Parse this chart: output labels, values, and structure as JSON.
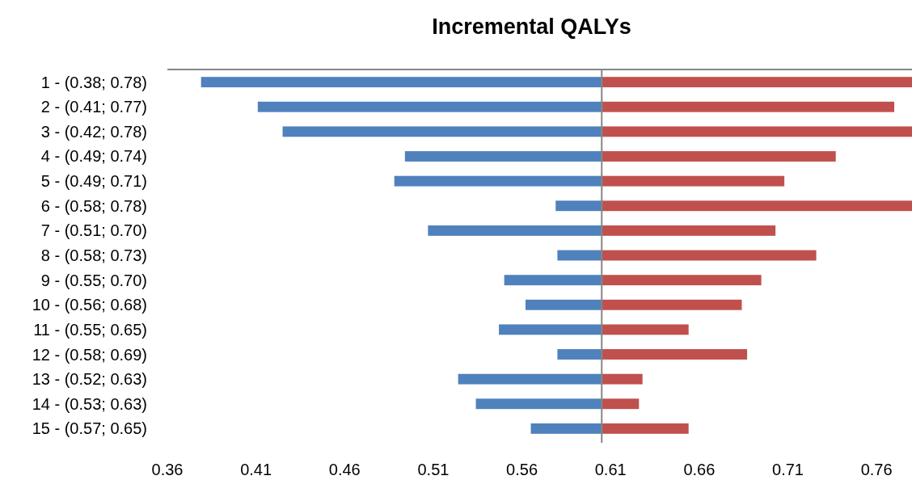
{
  "chart_data": {
    "type": "bar",
    "orientation": "horizontal",
    "title": "Incremental QALYs",
    "categories": [
      "1 - (0.38; 0.78)",
      "2 - (0.41; 0.77)",
      "3 - (0.42; 0.78)",
      "4 - (0.49; 0.74)",
      "5 - (0.49; 0.71)",
      "6 - (0.58; 0.78)",
      "7 - (0.51; 0.70)",
      "8 - (0.58; 0.73)",
      "9 - (0.55; 0.70)",
      "10 - (0.56; 0.68)",
      "11 - (0.55; 0.65)",
      "12 - (0.58; 0.69)",
      "13 - (0.52; 0.63)",
      "14 - (0.53; 0.63)",
      "15 - (0.57; 0.65)"
    ],
    "series": [
      {
        "color": "#4f81bd",
        "base": [
          0.379,
          0.411,
          0.425,
          0.494,
          0.488,
          0.579,
          0.507,
          0.58,
          0.55,
          0.562,
          0.547,
          0.58,
          0.524,
          0.534,
          0.565
        ],
        "values": [
          0.226,
          0.194,
          0.18,
          0.111,
          0.117,
          0.026,
          0.098,
          0.025,
          0.055,
          0.043,
          0.058,
          0.025,
          0.081,
          0.071,
          0.04
        ]
      },
      {
        "color": "#c0504d",
        "base": [
          0.605,
          0.605,
          0.605,
          0.605,
          0.605,
          0.605,
          0.605,
          0.605,
          0.605,
          0.605,
          0.605,
          0.605,
          0.605,
          0.605,
          0.605
        ],
        "values": [
          0.175,
          0.165,
          0.175,
          0.132,
          0.103,
          0.175,
          0.098,
          0.121,
          0.09,
          0.079,
          0.049,
          0.082,
          0.023,
          0.021,
          0.049
        ]
      }
    ],
    "xlim": [
      0.36,
      0.78
    ],
    "xticks": [
      0.36,
      0.41,
      0.46,
      0.51,
      0.56,
      0.61,
      0.66,
      0.71,
      0.76
    ],
    "ref_lines": [
      {
        "axis": "x",
        "value": 0.605,
        "color": "#868686"
      }
    ],
    "grid": false
  }
}
